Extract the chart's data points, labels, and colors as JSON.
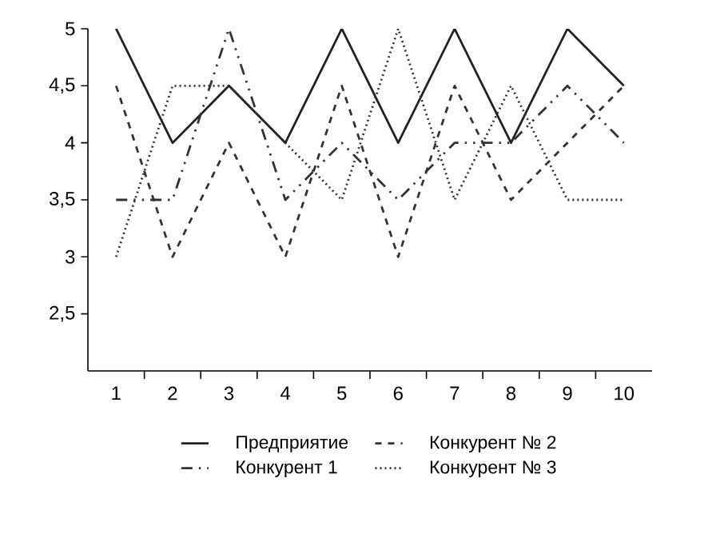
{
  "chart_data": {
    "type": "line",
    "x": [
      1,
      2,
      3,
      4,
      5,
      6,
      7,
      8,
      9,
      10
    ],
    "xlim": [
      0.5,
      10.5
    ],
    "xticks": [
      1,
      2,
      3,
      4,
      5,
      6,
      7,
      8,
      9,
      10,
      {
        "value": 1.5,
        "label": null
      },
      {
        "value": 2.5,
        "label": null
      },
      {
        "value": 3.5,
        "label": null
      },
      {
        "value": 4.5,
        "label": null
      },
      {
        "value": 5.5,
        "label": null
      },
      {
        "value": 6.5,
        "label": null
      },
      {
        "value": 7.5,
        "label": null
      },
      {
        "value": 8.5,
        "label": null
      },
      {
        "value": 9.5,
        "label": null
      }
    ],
    "ylim": [
      2,
      5
    ],
    "yticks": [
      {
        "value": 2.5,
        "label": "2,5"
      },
      3,
      {
        "value": 3.5,
        "label": "3,5"
      },
      4,
      {
        "value": 4.5,
        "label": "4,5"
      },
      5
    ],
    "legend": "bottom",
    "grid": false,
    "marker": "none",
    "series": [
      {
        "name": "Предприятие",
        "color": "#222222",
        "line_style": "solid",
        "values": [
          5,
          4,
          4.5,
          4,
          5,
          4,
          5,
          4,
          5,
          4.5
        ]
      },
      {
        "name": "Конкурент 1",
        "color": "#333333",
        "line_style": "dashdot",
        "values": [
          3.5,
          3.5,
          5,
          3.5,
          4,
          3.5,
          4,
          4,
          4.5,
          4
        ]
      },
      {
        "name": "Конкурент № 2",
        "color": "#333333",
        "line_style": "dashed",
        "values": [
          4.5,
          3,
          4,
          3,
          4.5,
          3,
          4.5,
          3.5,
          4,
          4.5
        ]
      },
      {
        "name": "Конкурент № 3",
        "color": "#333333",
        "line_style": "dotted",
        "values": [
          3,
          4.5,
          4.5,
          4,
          3.5,
          5,
          3.5,
          4.5,
          3.5,
          3.5
        ]
      }
    ]
  }
}
